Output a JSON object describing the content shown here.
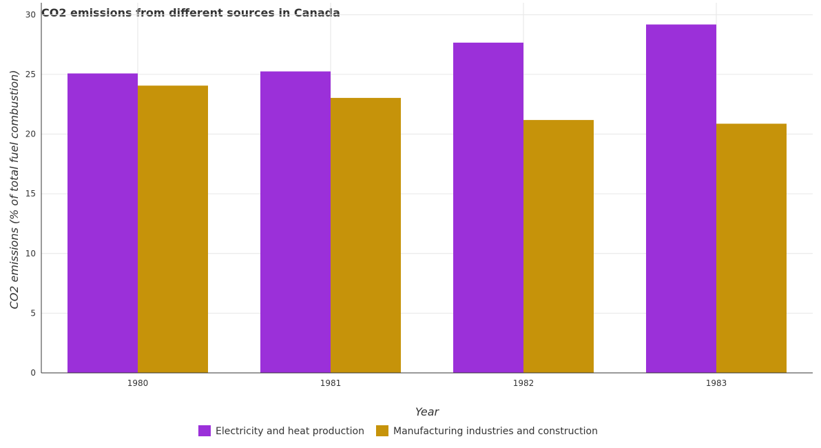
{
  "chart_data": {
    "type": "bar",
    "title": "CO2 emissions from different sources in Canada",
    "xlabel": "Year",
    "ylabel": "CO2 emissions (% of total fuel combustion)",
    "categories": [
      "1980",
      "1981",
      "1982",
      "1983"
    ],
    "ylim": [
      0,
      31
    ],
    "yticks": [
      0,
      5,
      10,
      15,
      20,
      25,
      30
    ],
    "grid": true,
    "legend_position": "bottom",
    "series": [
      {
        "name": "Electricity and heat production",
        "color": "#9b30d9",
        "values": [
          25.08,
          25.25,
          27.66,
          29.18
        ]
      },
      {
        "name": "Manufacturing industries and construction",
        "color": "#c6930a",
        "values": [
          24.06,
          23.03,
          21.18,
          20.87
        ]
      }
    ]
  }
}
